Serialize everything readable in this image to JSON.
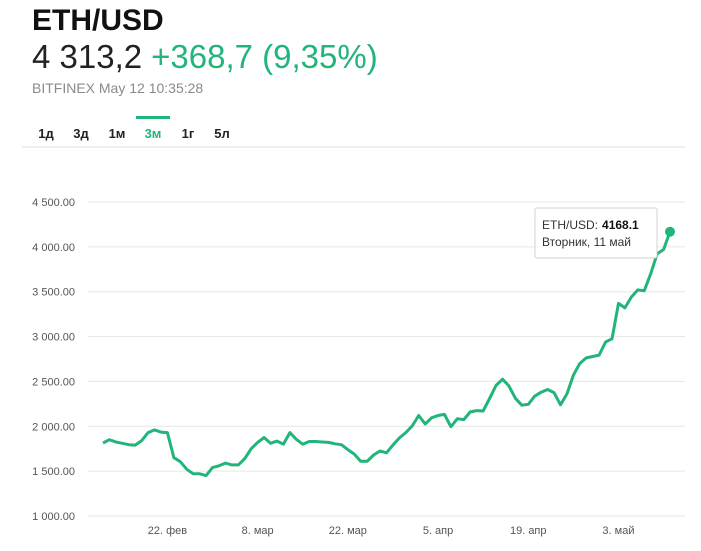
{
  "header": {
    "title": "ETH/USD",
    "price": "4 313,2",
    "change": "+368,7 (9,35%)",
    "source": "BITFINEX May 12 10:35:28"
  },
  "tabs": {
    "items": [
      "1д",
      "3д",
      "1м",
      "3м",
      "1г",
      "5л"
    ],
    "active": 3
  },
  "chart_data": {
    "type": "line",
    "color": "#21b57a",
    "grid": true,
    "categories": [
      null,
      null,
      null,
      null,
      null,
      null,
      null,
      null,
      null,
      null,
      "22. фев",
      null,
      null,
      null,
      null,
      null,
      null,
      null,
      null,
      null,
      null,
      null,
      null,
      null,
      "8. мар",
      null,
      null,
      null,
      null,
      null,
      null,
      null,
      null,
      null,
      null,
      null,
      null,
      null,
      "22. мар",
      null,
      null,
      null,
      null,
      null,
      null,
      null,
      null,
      null,
      null,
      null,
      null,
      null,
      "5. апр",
      null,
      null,
      null,
      null,
      null,
      null,
      null,
      null,
      null,
      null,
      null,
      null,
      null,
      "19. апр",
      null,
      null,
      null,
      null,
      null,
      null,
      null,
      null,
      null,
      null,
      null,
      null,
      null,
      "3. май",
      null,
      null,
      null,
      null,
      null,
      null,
      null,
      null
    ],
    "values": [
      1814,
      1850,
      1825,
      1810,
      1795,
      1790,
      1840,
      1930,
      1960,
      1935,
      1930,
      1650,
      1605,
      1520,
      1470,
      1470,
      1450,
      1540,
      1560,
      1590,
      1570,
      1570,
      1640,
      1750,
      1820,
      1875,
      1810,
      1835,
      1800,
      1930,
      1855,
      1800,
      1830,
      1830,
      1825,
      1820,
      1805,
      1795,
      1740,
      1690,
      1610,
      1610,
      1680,
      1725,
      1705,
      1790,
      1870,
      1930,
      2005,
      2120,
      2025,
      2095,
      2120,
      2133,
      1995,
      2085,
      2075,
      2160,
      2175,
      2170,
      2310,
      2455,
      2525,
      2450,
      2312,
      2235,
      2245,
      2335,
      2380,
      2410,
      2375,
      2240,
      2360,
      2570,
      2700,
      2762,
      2778,
      2793,
      2940,
      2975,
      3370,
      3320,
      3440,
      3520,
      3510,
      3700,
      3922,
      3970,
      4168.1
    ],
    "ylim": [
      1000,
      4500
    ],
    "yticks": [
      {
        "value": 1000,
        "label": "1 000.00"
      },
      {
        "value": 1500,
        "label": "1 500.00"
      },
      {
        "value": 2000,
        "label": "2 000.00"
      },
      {
        "value": 2500,
        "label": "2 500.00"
      },
      {
        "value": 3000,
        "label": "3 000.00"
      },
      {
        "value": 3500,
        "label": "3 500.00"
      },
      {
        "value": 4000,
        "label": "4 000.00"
      },
      {
        "value": 4500,
        "label": "4 500.00"
      }
    ],
    "tooltip_label": "ETH/USD:",
    "tooltip_date": "Вторник, 11 май"
  }
}
